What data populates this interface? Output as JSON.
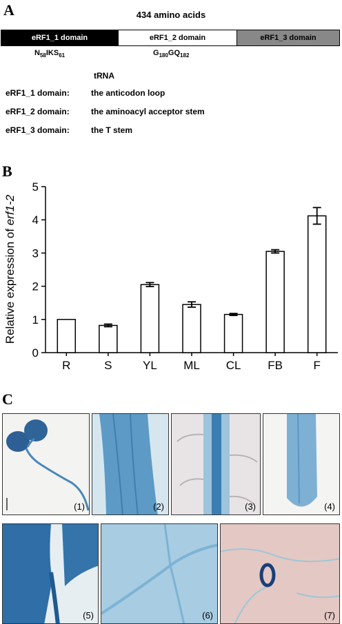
{
  "panel_a": {
    "letter": "A",
    "title": "434 amino acids",
    "domains": [
      {
        "label": "eRF1_1 domain",
        "color": "#000000"
      },
      {
        "label": "eRF1_2 domain",
        "color": "#ffffff"
      },
      {
        "label": "eRF1_3 domain",
        "color": "#888888"
      }
    ],
    "motif1": {
      "a": "N",
      "s1": "58",
      "b": "IKS",
      "s2": "61"
    },
    "motif2": {
      "a": "G",
      "s1": "180",
      "b": "GQ",
      "s2": "182"
    },
    "trna_header": "tRNA",
    "trna_rows": [
      {
        "domain": "eRF1_1 domain:",
        "target": "the anticodon loop"
      },
      {
        "domain": "eRF1_2 domain:",
        "target": "the aminoacyl acceptor stem"
      },
      {
        "domain": "eRF1_3 domain:",
        "target": "the T stem"
      }
    ]
  },
  "panel_b": {
    "letter": "B"
  },
  "chart_data": {
    "type": "bar",
    "categories": [
      "R",
      "S",
      "YL",
      "ML",
      "CL",
      "FB",
      "F"
    ],
    "values": [
      1.0,
      0.82,
      2.05,
      1.45,
      1.15,
      3.05,
      4.12
    ],
    "errors": [
      0,
      0.04,
      0.06,
      0.08,
      0.03,
      0.05,
      0.25
    ],
    "ylabel_prefix": "Relative expression of ",
    "ylabel_gene": "erf1-2",
    "ylim": [
      0,
      5
    ],
    "yticks": [
      0,
      1,
      2,
      3,
      4,
      5
    ],
    "bar_color": "#ffffff",
    "grid": false
  },
  "panel_c": {
    "letter": "C",
    "photo_labels": [
      "(1)",
      "(2)",
      "(3)",
      "(4)",
      "(5)",
      "(6)",
      "(7)"
    ]
  }
}
